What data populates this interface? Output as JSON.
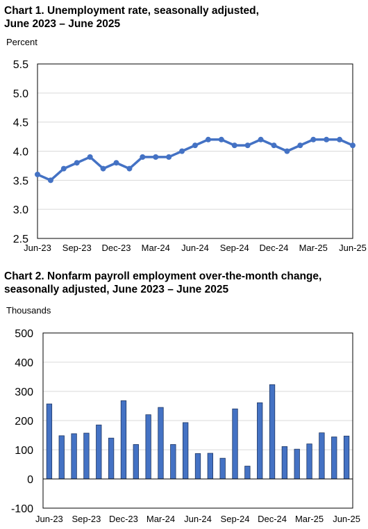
{
  "chart_data": [
    {
      "type": "line",
      "title": "Chart 1. Unemployment rate, seasonally adjusted,",
      "title_line2": "June 2023 – June 2025",
      "ylabel": "Percent",
      "ylim": [
        2.5,
        5.5
      ],
      "yticks": [
        "2.5",
        "3.0",
        "3.5",
        "4.0",
        "4.5",
        "5.0",
        "5.5"
      ],
      "xtick_labels": [
        "Jun-23",
        "Sep-23",
        "Dec-23",
        "Mar-24",
        "Jun-24",
        "Sep-24",
        "Dec-24",
        "Mar-25",
        "Jun-25"
      ],
      "x": [
        "Jun-23",
        "Jul-23",
        "Aug-23",
        "Sep-23",
        "Oct-23",
        "Nov-23",
        "Dec-23",
        "Jan-24",
        "Feb-24",
        "Mar-24",
        "Apr-24",
        "May-24",
        "Jun-24",
        "Jul-24",
        "Aug-24",
        "Sep-24",
        "Oct-24",
        "Nov-24",
        "Dec-24",
        "Jan-25",
        "Feb-25",
        "Mar-25",
        "Apr-25",
        "May-25",
        "Jun-25"
      ],
      "values": [
        3.6,
        3.5,
        3.7,
        3.8,
        3.9,
        3.7,
        3.8,
        3.7,
        3.9,
        3.9,
        3.9,
        4.0,
        4.1,
        4.2,
        4.2,
        4.1,
        4.1,
        4.2,
        4.1,
        4.0,
        4.1,
        4.2,
        4.2,
        4.2,
        4.1
      ],
      "color": "#4472C4",
      "grid": true
    },
    {
      "type": "bar",
      "title": "Chart 2. Nonfarm payroll employment over-the-month change,",
      "title_line2": "seasonally adjusted, June 2023 – June 2025",
      "ylabel": "Thousands",
      "ylim": [
        -100,
        500
      ],
      "yticks": [
        "-100",
        "0",
        "100",
        "200",
        "300",
        "400",
        "500"
      ],
      "xtick_labels": [
        "Jun-23",
        "Sep-23",
        "Dec-23",
        "Mar-24",
        "Jun-24",
        "Sep-24",
        "Dec-24",
        "Mar-25",
        "Jun-25"
      ],
      "categories": [
        "Jun-23",
        "Jul-23",
        "Aug-23",
        "Sep-23",
        "Oct-23",
        "Nov-23",
        "Dec-23",
        "Jan-24",
        "Feb-24",
        "Mar-24",
        "Apr-24",
        "May-24",
        "Jun-24",
        "Jul-24",
        "Aug-24",
        "Sep-24",
        "Oct-24",
        "Nov-24",
        "Dec-24",
        "Jan-25",
        "Feb-25",
        "Mar-25",
        "Apr-25",
        "May-25",
        "Jun-25"
      ],
      "values": [
        257,
        148,
        155,
        157,
        185,
        140,
        268,
        118,
        220,
        245,
        118,
        193,
        87,
        88,
        71,
        240,
        44,
        261,
        323,
        111,
        102,
        120,
        158,
        144,
        147
      ],
      "color": "#4472C4",
      "grid": true
    }
  ]
}
